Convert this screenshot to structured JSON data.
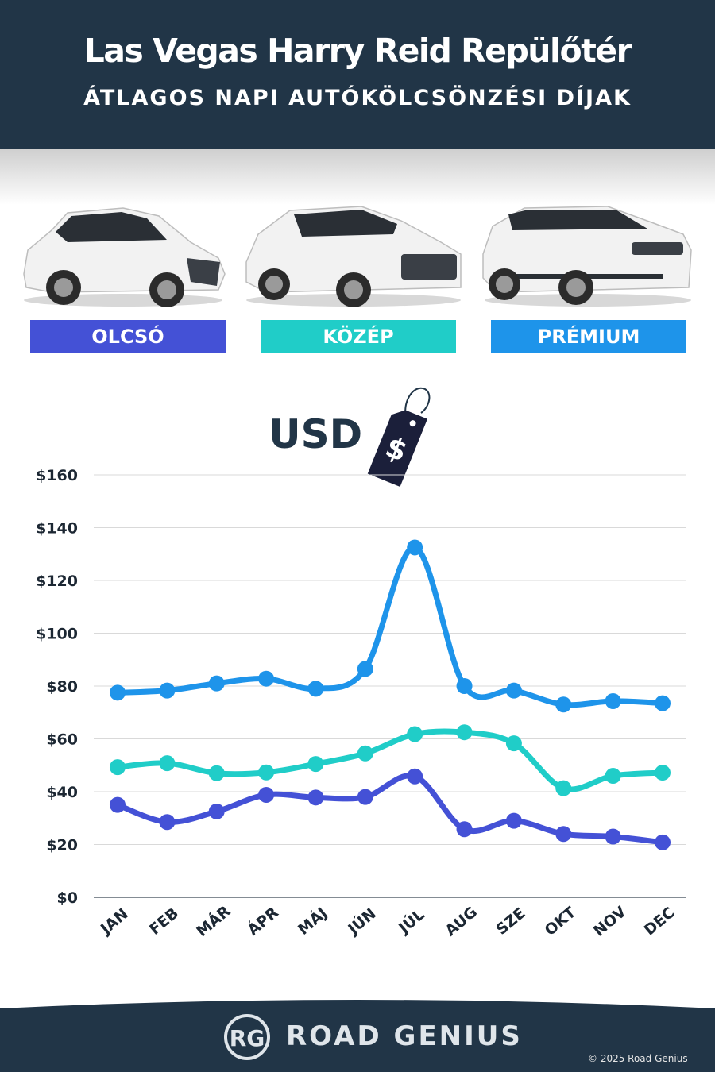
{
  "header": {
    "title": "Las Vegas Harry Reid Repülőtér",
    "subtitle": "ÁTLAGOS NAPI AUTÓKÖLCSÖNZÉSI DÍJAK"
  },
  "categories": [
    {
      "label": "OLCSÓ",
      "color": "#4451d6"
    },
    {
      "label": "KÖZÉP",
      "color": "#20cdc8"
    },
    {
      "label": "PRÉMIUM",
      "color": "#1e94ea"
    }
  ],
  "currency_label": "USD",
  "currency_tag_icon": "dollar-price-tag-icon",
  "chart_data": {
    "type": "line",
    "categories": [
      "JAN",
      "FEB",
      "MÁR",
      "ÁPR",
      "MÁJ",
      "JÚN",
      "JÚL",
      "AUG",
      "SZE",
      "OKT",
      "NOV",
      "DEC"
    ],
    "series": [
      {
        "name": "PRÉMIUM",
        "color": "#1e94ea",
        "values": [
          77.5,
          78.3,
          81,
          82.8,
          79,
          86.5,
          132.5,
          80,
          78.3,
          73,
          74.3,
          73.5
        ]
      },
      {
        "name": "KÖZÉP",
        "color": "#20cdc8",
        "values": [
          49.3,
          50.8,
          47,
          47.3,
          50.5,
          54.5,
          61.8,
          62.5,
          58.3,
          41.3,
          46,
          47.2
        ]
      },
      {
        "name": "OLCSÓ",
        "color": "#4451d6",
        "values": [
          35,
          28.5,
          32.5,
          38.8,
          37.8,
          38,
          45.8,
          25.8,
          29,
          24,
          23,
          20.8
        ]
      }
    ],
    "yticks": [
      "$0",
      "$20",
      "$40",
      "$60",
      "$80",
      "$100",
      "$120",
      "$140",
      "$160"
    ],
    "ylim": [
      0,
      160
    ],
    "grid": true
  },
  "footer": {
    "logo_text": "RG",
    "brand": "ROAD GENIUS",
    "copyright": "© 2025 Road Genius",
    "background": "#213547"
  }
}
